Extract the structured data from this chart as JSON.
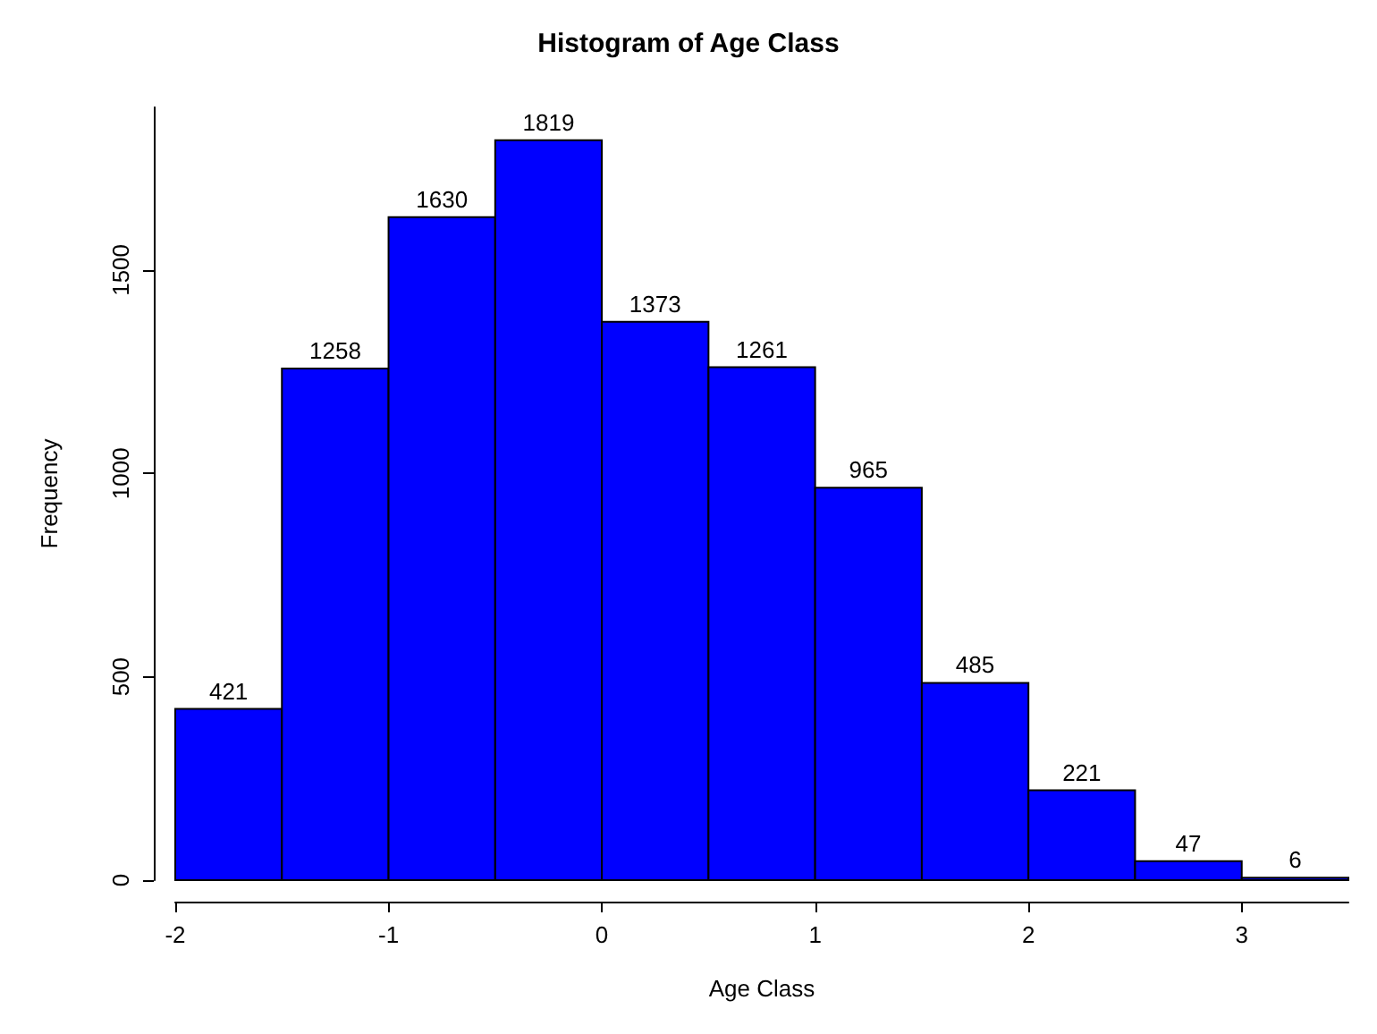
{
  "chart_data": {
    "type": "histogram",
    "title": "Histogram of Age Class",
    "xlabel": "Age Class",
    "ylabel": "Frequency",
    "bins": [
      -2,
      -1.5,
      -1,
      -0.5,
      0,
      0.5,
      1,
      1.5,
      2,
      2.5,
      3,
      3.5
    ],
    "values": [
      421,
      1258,
      1630,
      1819,
      1373,
      1261,
      965,
      485,
      221,
      47,
      6
    ],
    "color": "#0000ff",
    "xlim": [
      -2,
      3.5
    ],
    "xticks": [
      -2,
      -1,
      0,
      1,
      2,
      3
    ],
    "ylim": [
      0,
      1900
    ],
    "yticks": [
      0,
      500,
      1000,
      1500
    ],
    "data_labels": true,
    "grid": false
  }
}
